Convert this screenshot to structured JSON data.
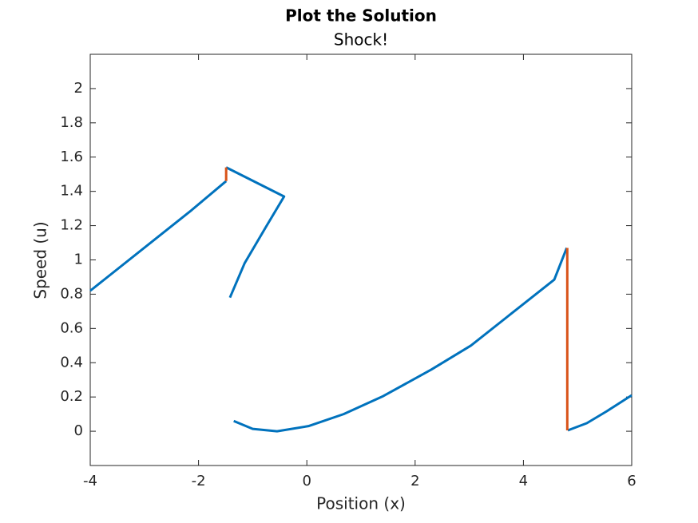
{
  "chart_data": {
    "type": "line",
    "title": "Plot the Solution",
    "subtitle": "Shock!",
    "x_label": "Position (x)",
    "y_label": "Speed (u)",
    "xlim": [
      -4,
      6
    ],
    "ylim": [
      -0.2,
      2.2
    ],
    "xticks": [
      -4,
      -2,
      0,
      2,
      4,
      6
    ],
    "yticks": [
      0,
      0.2,
      0.4,
      0.6,
      0.8,
      1,
      1.2,
      1.4,
      1.6,
      1.8,
      2
    ],
    "grid": false,
    "series": [
      {
        "color": "#0072BD",
        "x": [
          -4,
          -2.13,
          -1.49,
          null,
          -1.49,
          -0.42,
          -0.76,
          -1.15,
          -1.42,
          null,
          -1.35,
          -1.0,
          -0.55,
          0.03,
          0.68,
          1.41,
          2.3,
          3.03,
          3.77,
          4.57,
          4.8,
          null,
          4.82,
          5.17,
          5.54,
          6
        ],
        "values": [
          0.82,
          1.29,
          1.46,
          null,
          1.54,
          1.37,
          1.19,
          0.98,
          0.78,
          null,
          0.06,
          0.014,
          0.0,
          0.03,
          0.1,
          0.205,
          0.36,
          0.5,
          0.685,
          0.885,
          1.07,
          null,
          0.005,
          0.047,
          0.117,
          0.21
        ]
      },
      {
        "color": "#D95319",
        "x": [
          -1.49,
          -1.49,
          null,
          4.81,
          4.81
        ],
        "values": [
          1.46,
          1.54,
          null,
          1.07,
          0.005
        ]
      }
    ]
  }
}
